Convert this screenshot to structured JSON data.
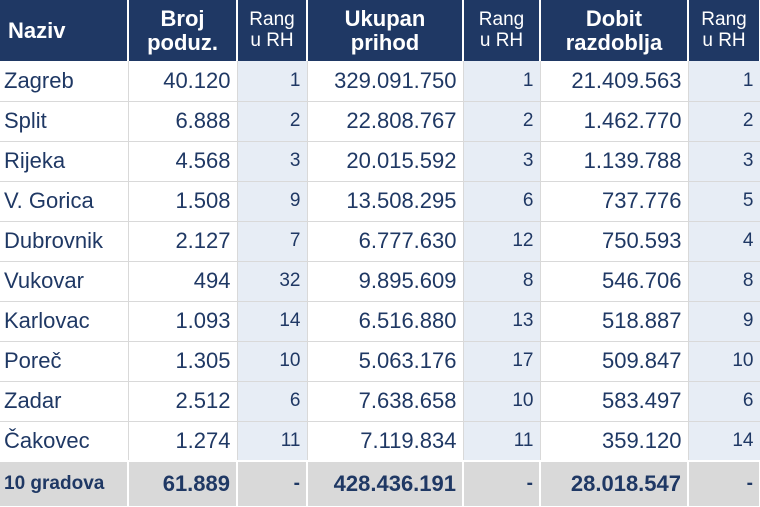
{
  "headers": {
    "naziv": "Naziv",
    "broj": [
      "Broj",
      "poduz."
    ],
    "rang1": [
      "Rang",
      "u RH"
    ],
    "prihod": [
      "Ukupan",
      "prihod"
    ],
    "rang2": [
      "Rang",
      "u RH"
    ],
    "dobit": [
      "Dobit",
      "razdoblja"
    ],
    "rang3": [
      "Rang",
      "u RH"
    ]
  },
  "rows": [
    {
      "name": "Zagreb",
      "broj": "40.120",
      "rang1": "1",
      "prihod": "329.091.750",
      "rang2": "1",
      "dobit": "21.409.563",
      "rang3": "1"
    },
    {
      "name": "Split",
      "broj": "6.888",
      "rang1": "2",
      "prihod": "22.808.767",
      "rang2": "2",
      "dobit": "1.462.770",
      "rang3": "2"
    },
    {
      "name": "Rijeka",
      "broj": "4.568",
      "rang1": "3",
      "prihod": "20.015.592",
      "rang2": "3",
      "dobit": "1.139.788",
      "rang3": "3"
    },
    {
      "name": "V. Gorica",
      "broj": "1.508",
      "rang1": "9",
      "prihod": "13.508.295",
      "rang2": "6",
      "dobit": "737.776",
      "rang3": "5"
    },
    {
      "name": "Dubrovnik",
      "broj": "2.127",
      "rang1": "7",
      "prihod": "6.777.630",
      "rang2": "12",
      "dobit": "750.593",
      "rang3": "4"
    },
    {
      "name": "Vukovar",
      "broj": "494",
      "rang1": "32",
      "prihod": "9.895.609",
      "rang2": "8",
      "dobit": "546.706",
      "rang3": "8"
    },
    {
      "name": "Karlovac",
      "broj": "1.093",
      "rang1": "14",
      "prihod": "6.516.880",
      "rang2": "13",
      "dobit": "518.887",
      "rang3": "9"
    },
    {
      "name": "Poreč",
      "broj": "1.305",
      "rang1": "10",
      "prihod": "5.063.176",
      "rang2": "17",
      "dobit": "509.847",
      "rang3": "10"
    },
    {
      "name": "Zadar",
      "broj": "2.512",
      "rang1": "6",
      "prihod": "7.638.658",
      "rang2": "10",
      "dobit": "583.497",
      "rang3": "6"
    },
    {
      "name": "Čakovec",
      "broj": "1.274",
      "rang1": "11",
      "prihod": "7.119.834",
      "rang2": "11",
      "dobit": "359.120",
      "rang3": "14"
    }
  ],
  "total": {
    "name": "10 gradova",
    "broj": "61.889",
    "rang1": "-",
    "prihod": "428.436.191",
    "rang2": "-",
    "dobit": "28.018.547",
    "rang3": "-"
  }
}
